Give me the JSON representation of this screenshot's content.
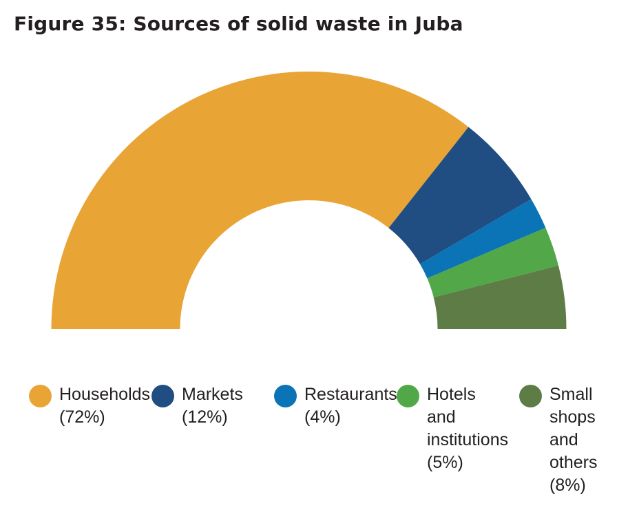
{
  "title": "Figure 35: Sources of solid waste in Juba",
  "chart_data": {
    "type": "pie",
    "variant": "half-donut",
    "title": "Figure 35: Sources of solid waste in Juba",
    "unit": "%",
    "slices": [
      {
        "label": "Households",
        "value": 72,
        "value_label": "(72%)",
        "color": "#E8A435"
      },
      {
        "label": "Markets",
        "value": 12,
        "value_label": "(12%)",
        "color": "#204E82"
      },
      {
        "label": "Restaurants",
        "value": 4,
        "value_label": "(4%)",
        "color": "#0A74B6"
      },
      {
        "label": "Hotels and institutions",
        "value": 5,
        "value_label": "(5%)",
        "color": "#52A848"
      },
      {
        "label": "Small shops and others",
        "value": 8,
        "value_label": "(8%)",
        "color": "#5D7C46"
      }
    ],
    "legend_position": "bottom"
  },
  "legend": [
    {
      "lines": [
        "Households",
        "(72%)"
      ]
    },
    {
      "lines": [
        "Markets",
        "(12%)"
      ]
    },
    {
      "lines": [
        "Restaurants",
        "(4%)"
      ]
    },
    {
      "lines": [
        "Hotels",
        "and",
        "institutions",
        "(5%)"
      ]
    },
    {
      "lines": [
        "Small",
        "shops",
        "and",
        "others",
        "(8%)"
      ]
    }
  ]
}
